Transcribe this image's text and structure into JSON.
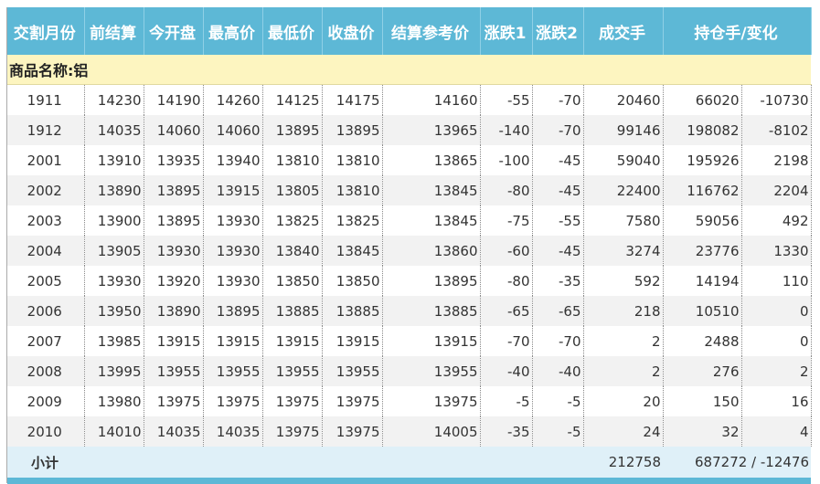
{
  "header": {
    "columns": [
      "交割月份",
      "前结算",
      "今开盘",
      "最高价",
      "最低价",
      "收盘价",
      "结算参考价",
      "涨跌1",
      "涨跌2",
      "成交手",
      "持仓手/变化"
    ]
  },
  "section_title": "商品名称:铝",
  "rows": [
    [
      1911,
      14230,
      14190,
      14260,
      14125,
      14175,
      14160,
      -55,
      -70,
      20460,
      66020,
      -10730
    ],
    [
      1912,
      14035,
      14060,
      14060,
      13895,
      13895,
      13965,
      -140,
      -70,
      99146,
      198082,
      -8102
    ],
    [
      2001,
      13910,
      13935,
      13940,
      13810,
      13810,
      13865,
      -100,
      -45,
      59040,
      195926,
      2198
    ],
    [
      2002,
      13890,
      13895,
      13915,
      13805,
      13810,
      13845,
      -80,
      -45,
      22400,
      116762,
      2204
    ],
    [
      2003,
      13900,
      13895,
      13930,
      13825,
      13825,
      13845,
      -75,
      -55,
      7580,
      59056,
      492
    ],
    [
      2004,
      13905,
      13930,
      13930,
      13840,
      13845,
      13860,
      -60,
      -45,
      3274,
      23776,
      1330
    ],
    [
      2005,
      13930,
      13920,
      13930,
      13850,
      13850,
      13895,
      -80,
      -35,
      592,
      14194,
      110
    ],
    [
      2006,
      13950,
      13890,
      13895,
      13885,
      13885,
      13885,
      -65,
      -65,
      218,
      10510,
      0
    ],
    [
      2007,
      13985,
      13915,
      13915,
      13915,
      13915,
      13915,
      -70,
      -70,
      2,
      2488,
      0
    ],
    [
      2008,
      13995,
      13955,
      13955,
      13955,
      13955,
      13955,
      -40,
      -40,
      2,
      276,
      2
    ],
    [
      2009,
      13980,
      13975,
      13975,
      13975,
      13975,
      13975,
      -5,
      -5,
      20,
      150,
      16
    ],
    [
      2010,
      14010,
      14035,
      14035,
      13975,
      13975,
      14005,
      -35,
      -5,
      24,
      32,
      4
    ]
  ],
  "subtotal": {
    "label": "小计",
    "volume": 212758,
    "open_interest": "687272 / -12476"
  }
}
